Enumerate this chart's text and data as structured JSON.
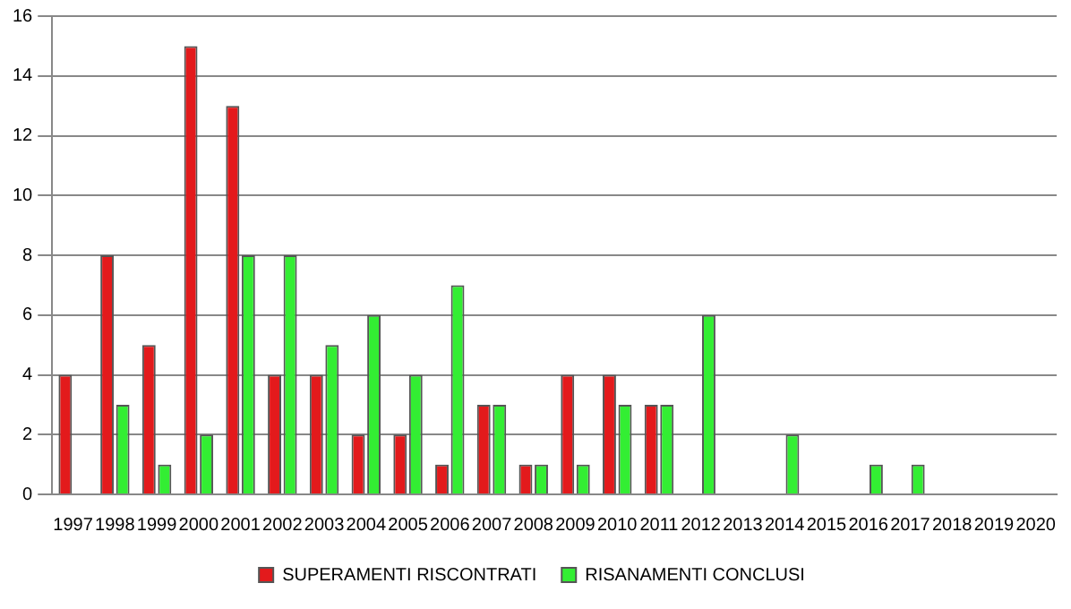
{
  "chart_data": {
    "type": "bar",
    "categories": [
      "1997",
      "1998",
      "1999",
      "2000",
      "2001",
      "2002",
      "2003",
      "2004",
      "2005",
      "2006",
      "2007",
      "2008",
      "2009",
      "2010",
      "2011",
      "2012",
      "2013",
      "2014",
      "2015",
      "2016",
      "2017",
      "2018",
      "2019",
      "2020"
    ],
    "series": [
      {
        "name": "SUPERAMENTI RISCONTRATI",
        "color": "#e31a1c",
        "values": [
          4,
          8,
          5,
          15,
          13,
          4,
          4,
          2,
          2,
          1,
          3,
          1,
          4,
          4,
          3,
          0,
          0,
          0,
          0,
          0,
          0,
          0,
          0,
          0
        ]
      },
      {
        "name": "RISANAMENTI CONCLUSI",
        "color": "#33ee33",
        "values": [
          0,
          3,
          1,
          2,
          8,
          8,
          5,
          6,
          4,
          7,
          3,
          1,
          1,
          3,
          3,
          6,
          0,
          2,
          0,
          1,
          1,
          0,
          0,
          0
        ]
      }
    ],
    "ylim": [
      0,
      16
    ],
    "yticks": [
      0,
      2,
      4,
      6,
      8,
      10,
      12,
      14,
      16
    ],
    "grid": "y",
    "legend": "bottom"
  }
}
